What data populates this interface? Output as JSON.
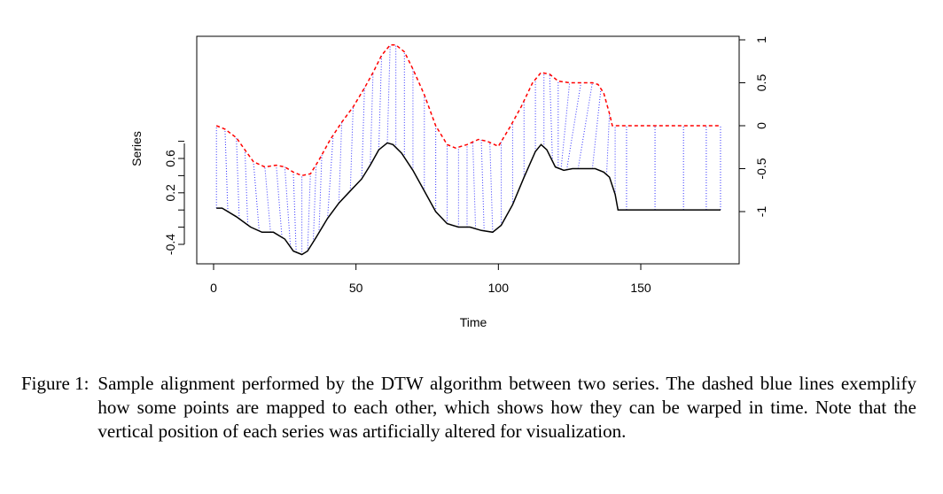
{
  "chart_data": {
    "type": "line",
    "xlabel": "Time",
    "ylabel": "Series",
    "xlim": [
      0,
      180
    ],
    "xticks": [
      0,
      50,
      100,
      150
    ],
    "y_left_ticks": [
      "-0.4",
      "0.2",
      "0.6"
    ],
    "y_right_ticks": [
      "-1",
      "-0.5",
      "0",
      "0.5",
      "1"
    ],
    "series": [
      {
        "style": "solid",
        "color": "#000000",
        "x": [
          1,
          3,
          8,
          13,
          17,
          21,
          25,
          28,
          31,
          33,
          36,
          40,
          44,
          48,
          52,
          55,
          58,
          61,
          63,
          66,
          70,
          74,
          78,
          82,
          86,
          90,
          94,
          98,
          101,
          105,
          109,
          113,
          115,
          117,
          120,
          123,
          126,
          130,
          134,
          137,
          139,
          141,
          142,
          150,
          160,
          170,
          178
        ],
        "y": [
          -0.96,
          -0.96,
          -1.06,
          -1.18,
          -1.24,
          -1.24,
          -1.32,
          -1.46,
          -1.5,
          -1.46,
          -1.3,
          -1.08,
          -0.9,
          -0.76,
          -0.62,
          -0.46,
          -0.28,
          -0.2,
          -0.22,
          -0.32,
          -0.52,
          -0.76,
          -1.0,
          -1.14,
          -1.18,
          -1.18,
          -1.22,
          -1.24,
          -1.16,
          -0.92,
          -0.6,
          -0.3,
          -0.22,
          -0.28,
          -0.48,
          -0.52,
          -0.5,
          -0.5,
          -0.5,
          -0.54,
          -0.6,
          -0.8,
          -0.98,
          -0.98,
          -0.98,
          -0.98,
          -0.98
        ]
      },
      {
        "style": "dashed",
        "color": "#ff0000",
        "x": [
          1,
          4,
          8,
          11,
          14,
          18,
          22,
          25,
          28,
          31,
          34,
          37,
          41,
          45,
          49,
          53,
          56,
          59,
          62,
          64,
          67,
          70,
          74,
          78,
          82,
          85,
          89,
          93,
          96,
          100,
          104,
          108,
          112,
          115,
          118,
          121,
          125,
          129,
          133,
          135,
          137,
          139,
          140,
          150,
          160,
          170,
          178
        ],
        "y": [
          0.0,
          -0.04,
          -0.14,
          -0.28,
          -0.42,
          -0.48,
          -0.46,
          -0.48,
          -0.54,
          -0.58,
          -0.56,
          -0.4,
          -0.16,
          0.04,
          0.22,
          0.44,
          0.62,
          0.82,
          0.94,
          0.94,
          0.86,
          0.66,
          0.36,
          0.0,
          -0.22,
          -0.26,
          -0.22,
          -0.16,
          -0.18,
          -0.24,
          -0.02,
          0.22,
          0.5,
          0.62,
          0.6,
          0.52,
          0.5,
          0.5,
          0.5,
          0.48,
          0.38,
          0.14,
          0.0,
          0.0,
          0.0,
          0.0,
          0.0
        ]
      }
    ],
    "alignment_links": [
      [
        1,
        1
      ],
      [
        5,
        4
      ],
      [
        9,
        8
      ],
      [
        12,
        11
      ],
      [
        16,
        14
      ],
      [
        20,
        18
      ],
      [
        24,
        22
      ],
      [
        27,
        25
      ],
      [
        29,
        28
      ],
      [
        31,
        31
      ],
      [
        33,
        34
      ],
      [
        35,
        36
      ],
      [
        37,
        38
      ],
      [
        40,
        42
      ],
      [
        44,
        45
      ],
      [
        48,
        49
      ],
      [
        52,
        53
      ],
      [
        55,
        56
      ],
      [
        58,
        59
      ],
      [
        61,
        62
      ],
      [
        64,
        64
      ],
      [
        67,
        67
      ],
      [
        70,
        70
      ],
      [
        74,
        74
      ],
      [
        78,
        78
      ],
      [
        82,
        82
      ],
      [
        86,
        86
      ],
      [
        89,
        89
      ],
      [
        92,
        91
      ],
      [
        95,
        94
      ],
      [
        98,
        97
      ],
      [
        101,
        101
      ],
      [
        105,
        105
      ],
      [
        109,
        109
      ],
      [
        113,
        113
      ],
      [
        116,
        116
      ],
      [
        119,
        118
      ],
      [
        121,
        121
      ],
      [
        122,
        125
      ],
      [
        124,
        129
      ],
      [
        128,
        133
      ],
      [
        133,
        136
      ],
      [
        138,
        139
      ],
      [
        141,
        141
      ],
      [
        145,
        145
      ],
      [
        155,
        155
      ],
      [
        165,
        165
      ],
      [
        173,
        173
      ],
      [
        178,
        178
      ]
    ]
  },
  "caption": {
    "label": "Figure 1:",
    "text": "Sample alignment performed by the DTW algorithm between two series. The dashed blue lines exemplify how some points are mapped to each other, which shows how they can be warped in time. Note that the vertical position of each series was artificially altered for visualization."
  }
}
